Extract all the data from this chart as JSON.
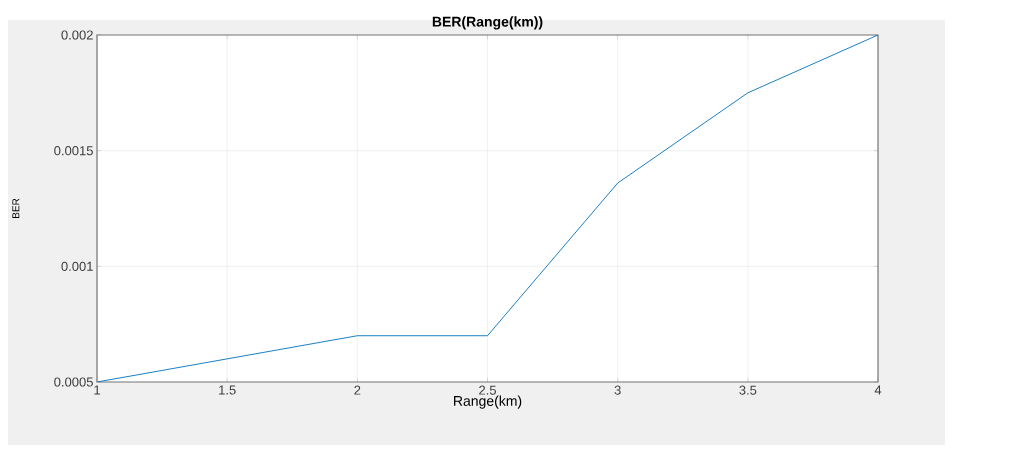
{
  "chart_data": {
    "type": "line",
    "title": "BER(Range(km))",
    "xlabel": "Range(km)",
    "ylabel": "BER",
    "x": [
      1,
      1.5,
      2,
      2.5,
      3,
      3.5,
      4
    ],
    "series": [
      {
        "color": "#0072bd",
        "values": [
          0.0005,
          0.0006,
          0.0007,
          0.0007,
          0.00136,
          0.00175,
          0.002
        ]
      }
    ],
    "xlim": [
      1,
      4
    ],
    "ylim": [
      0.0005,
      0.002
    ],
    "xticks": [
      1,
      1.5,
      2,
      2.5,
      3,
      3.5,
      4
    ],
    "yticks": [
      0.0005,
      0.001,
      0.0015,
      0.002
    ],
    "grid": true,
    "legend": false,
    "marker": "none",
    "line_style": "solid"
  }
}
